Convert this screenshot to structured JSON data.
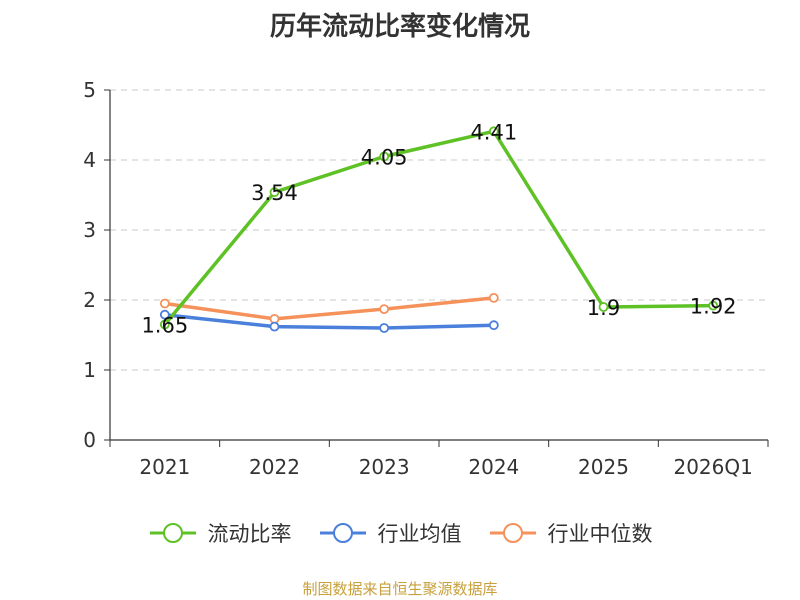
{
  "chart_data": {
    "type": "line",
    "title": "历年流动比率变化情况",
    "categories": [
      "2021",
      "2022",
      "2023",
      "2024",
      "2025",
      "2026Q1"
    ],
    "ylim": [
      0,
      5
    ],
    "yticks": [
      "0",
      "1",
      "2",
      "3",
      "4",
      "5"
    ],
    "grid": true,
    "legend_position": "bottom",
    "series": [
      {
        "name": "流动比率",
        "color": "#5ec125",
        "values": [
          1.65,
          3.54,
          4.05,
          4.41,
          1.9,
          1.92
        ],
        "labels": [
          "1.65",
          "3.54",
          "4.05",
          "4.41",
          "1.9",
          "1.92"
        ]
      },
      {
        "name": "行业均值",
        "color": "#4a7fdc",
        "values": [
          1.79,
          1.62,
          1.6,
          1.64,
          null,
          null
        ]
      },
      {
        "name": "行业中位数",
        "color": "#f5915a",
        "values": [
          1.95,
          1.73,
          1.87,
          2.03,
          null,
          null
        ]
      }
    ]
  },
  "source": "制图数据来自恒生聚源数据库"
}
